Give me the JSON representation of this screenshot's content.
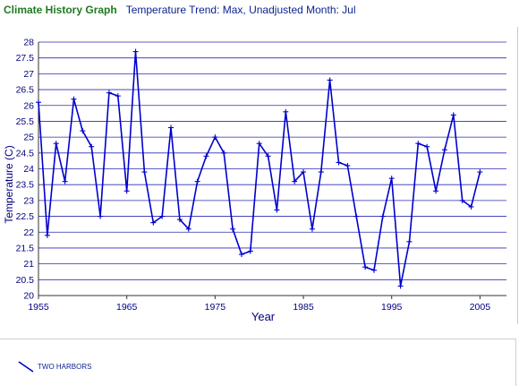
{
  "header": {
    "title": "Climate History Graph",
    "subtitle": "Temperature Trend: Max, Unadjusted Month: Jul"
  },
  "legend": {
    "entries": [
      {
        "label": "TWO HARBORS",
        "color": "#0000cc"
      }
    ]
  },
  "colors": {
    "line": "#0000cc",
    "grid": "#2b2bb5",
    "axis": "#333333",
    "tick_text": "#000080"
  },
  "chart_data": {
    "type": "line",
    "xlabel": "Year",
    "ylabel": "Temperature (C)",
    "xlim": [
      1955,
      2008
    ],
    "ylim": [
      20,
      28
    ],
    "x_ticks": [
      1955,
      1965,
      1975,
      1985,
      1995,
      2005
    ],
    "y_ticks": [
      20,
      20.5,
      21,
      21.5,
      22,
      22.5,
      23,
      23.5,
      24,
      24.5,
      25,
      25.5,
      26,
      26.5,
      27,
      27.5,
      28
    ],
    "y_tick_labels": [
      "20",
      "20.5",
      "21",
      "21.5",
      "22",
      "22.5",
      "23",
      "23.5",
      "24",
      "24.5",
      "25",
      "25.5",
      "26",
      "26.5",
      "27",
      "27.5",
      "28"
    ],
    "grid": "horizontal",
    "series": [
      {
        "name": "TWO HARBORS",
        "x": [
          1955,
          1956,
          1957,
          1958,
          1959,
          1960,
          1961,
          1962,
          1963,
          1964,
          1965,
          1966,
          1967,
          1968,
          1969,
          1970,
          1971,
          1972,
          1973,
          1974,
          1975,
          1976,
          1977,
          1978,
          1979,
          1980,
          1981,
          1982,
          1983,
          1984,
          1985,
          1986,
          1987,
          1988,
          1989,
          1990,
          1991,
          1992,
          1993,
          1994,
          1995,
          1996,
          1997,
          1998,
          1999,
          2000,
          2001,
          2002,
          2003,
          2004,
          2005
        ],
        "y": [
          26.1,
          21.9,
          24.8,
          23.6,
          26.2,
          25.2,
          24.7,
          22.5,
          26.4,
          26.3,
          23.3,
          27.7,
          23.9,
          22.3,
          22.5,
          25.3,
          22.4,
          22.1,
          23.6,
          24.4,
          25.0,
          24.5,
          22.1,
          21.3,
          21.4,
          24.8,
          24.4,
          22.7,
          25.8,
          23.6,
          23.9,
          22.1,
          23.9,
          26.8,
          24.2,
          24.1,
          22.5,
          20.9,
          20.8,
          22.5,
          23.7,
          20.3,
          21.7,
          24.8,
          24.7,
          23.3,
          24.6,
          25.7,
          23.0,
          22.8,
          23.9
        ]
      }
    ]
  }
}
